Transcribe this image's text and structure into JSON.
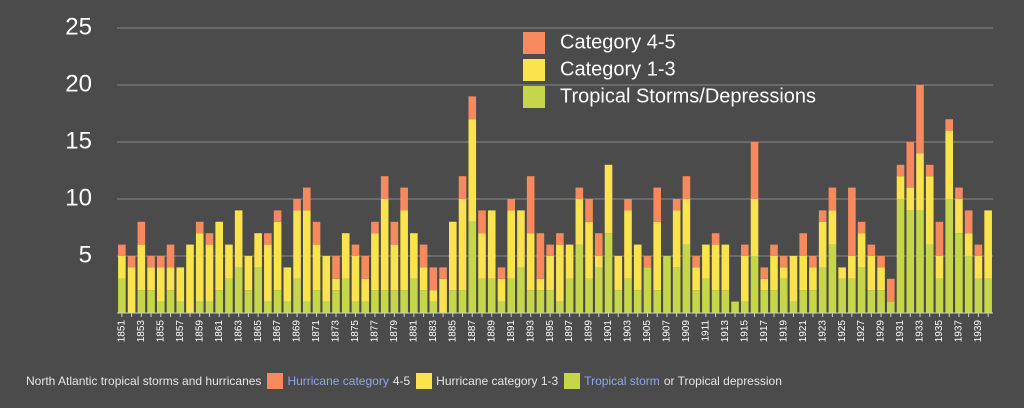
{
  "chart_data": {
    "type": "stacked_bar",
    "categories": [
      "1851",
      null,
      "1853",
      null,
      "1855",
      null,
      "1857",
      null,
      "1859",
      null,
      "1861",
      null,
      "1863",
      null,
      "1865",
      null,
      "1867",
      null,
      "1869",
      null,
      "1871",
      null,
      "1873",
      null,
      "1875",
      null,
      "1877",
      null,
      "1879",
      null,
      "1881",
      null,
      "1883",
      null,
      "1885",
      null,
      "1887",
      null,
      "1889",
      null,
      "1891",
      null,
      "1893",
      null,
      "1895",
      null,
      "1897",
      null,
      "1899",
      null,
      "1901",
      null,
      "1903",
      null,
      "1905",
      null,
      "1907",
      null,
      "1909",
      null,
      "1911",
      null,
      "1913",
      null,
      "1915",
      null,
      "1917",
      null,
      "1919",
      null,
      "1921",
      null,
      "1923",
      null,
      "1925",
      null,
      "1927",
      null,
      "1929",
      null,
      "1931",
      null,
      "1933",
      null,
      "1935",
      null,
      "1937",
      null,
      "1939",
      null
    ],
    "series": [
      {
        "name": "Tropical Storms/Depressions",
        "color": "#c5d64b",
        "values": [
          3,
          0,
          2,
          2,
          1,
          2,
          1,
          0,
          1,
          1,
          2,
          3,
          4,
          2,
          4,
          1,
          2,
          1,
          3,
          1,
          2,
          1,
          2,
          3,
          1,
          1,
          2,
          2,
          2,
          2,
          3,
          2,
          1,
          0,
          2,
          2,
          8,
          3,
          3,
          1,
          3,
          4,
          2,
          2,
          2,
          1,
          3,
          6,
          3,
          4,
          7,
          2,
          3,
          2,
          4,
          2,
          5,
          4,
          6,
          2,
          3,
          2,
          2,
          1,
          1,
          5,
          2,
          2,
          3,
          1,
          2,
          2,
          4,
          6,
          3,
          3,
          4,
          2,
          2,
          1,
          10,
          9,
          9,
          6,
          3,
          10,
          7,
          5,
          3,
          3
        ]
      },
      {
        "name": "Category 1-3",
        "color": "#fae34d",
        "values": [
          2,
          4,
          4,
          2,
          3,
          2,
          3,
          6,
          6,
          5,
          6,
          3,
          5,
          3,
          3,
          5,
          6,
          3,
          6,
          8,
          4,
          4,
          1,
          4,
          4,
          2,
          5,
          8,
          4,
          7,
          4,
          2,
          1,
          3,
          6,
          8,
          9,
          4,
          6,
          2,
          6,
          5,
          5,
          1,
          3,
          5,
          3,
          4,
          5,
          1,
          6,
          3,
          6,
          4,
          0,
          6,
          0,
          5,
          4,
          2,
          3,
          4,
          4,
          0,
          4,
          5,
          1,
          3,
          1,
          4,
          3,
          2,
          4,
          3,
          1,
          2,
          3,
          3,
          2,
          0,
          2,
          2,
          5,
          6,
          2,
          6,
          3,
          2,
          2,
          6
        ]
      },
      {
        "name": "Category 4-5",
        "color": "#f7895e",
        "values": [
          1,
          1,
          2,
          1,
          1,
          2,
          0,
          0,
          1,
          1,
          0,
          0,
          0,
          0,
          0,
          1,
          1,
          0,
          1,
          2,
          2,
          0,
          2,
          0,
          1,
          2,
          1,
          2,
          2,
          2,
          0,
          2,
          2,
          1,
          0,
          2,
          2,
          2,
          0,
          1,
          1,
          0,
          5,
          4,
          1,
          1,
          0,
          1,
          2,
          2,
          0,
          0,
          1,
          0,
          1,
          3,
          0,
          1,
          2,
          1,
          0,
          1,
          0,
          0,
          1,
          5,
          1,
          1,
          1,
          0,
          2,
          1,
          1,
          2,
          0,
          6,
          1,
          1,
          1,
          2,
          1,
          4,
          6,
          1,
          3,
          1,
          1,
          2,
          1,
          0
        ]
      }
    ],
    "ylim": [
      0,
      25
    ],
    "yticks": [
      5,
      10,
      15,
      20,
      25
    ],
    "grid": true
  },
  "caption": {
    "title": "North Atlantic tropical storms and hurricanes",
    "items": [
      {
        "link": "Hurricane category",
        "text": "4-5"
      },
      {
        "text": "Hurricane category 1-3"
      },
      {
        "link": "Tropical storm",
        "text": "or Tropical depression"
      }
    ]
  }
}
